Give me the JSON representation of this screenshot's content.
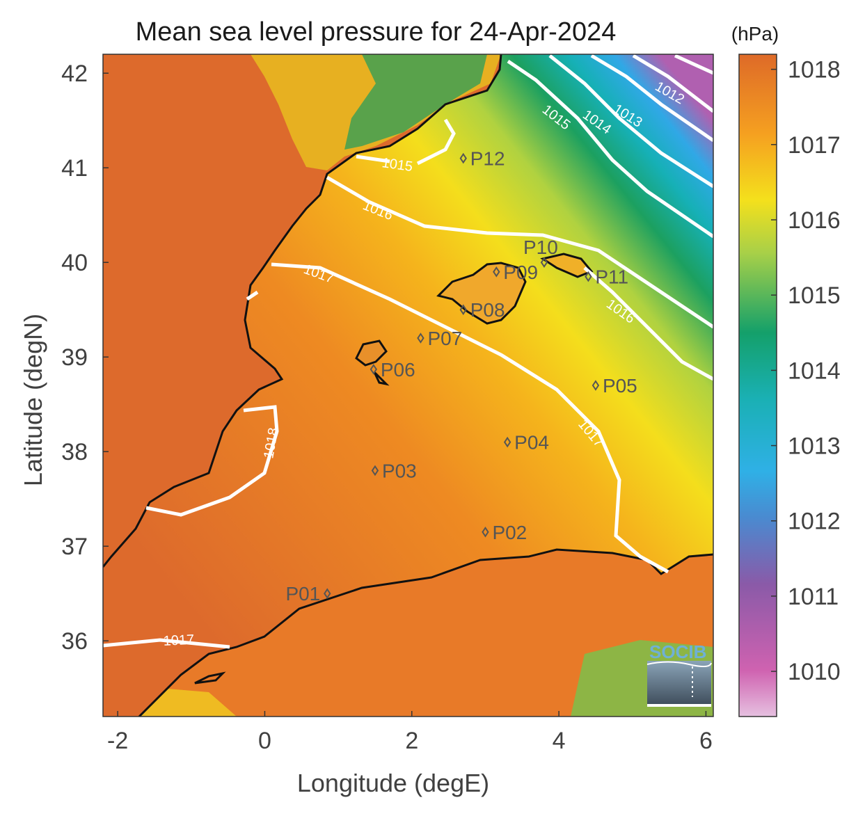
{
  "title": "Mean sea level pressure for 24-Apr-2024",
  "colorbar": {
    "unit": "(hPa)",
    "range": [
      1009.4,
      1018.2
    ],
    "ticks": [
      "1018",
      "1017",
      "1016",
      "1015",
      "1014",
      "1013",
      "1012",
      "1011",
      "1010"
    ],
    "colors": [
      "#e6c0e0",
      "#cf62b0",
      "#8a5aa8",
      "#2fb0e6",
      "#1ab0b4",
      "#14a06a",
      "#a8d048",
      "#f4e01c",
      "#f5a020",
      "#de6a28"
    ]
  },
  "map": {
    "xlabel": "Longitude (degE)",
    "ylabel": "Latitude (degN)",
    "xlim": [
      -2.2,
      6.1
    ],
    "ylim": [
      35.2,
      42.2
    ],
    "xticks": [
      "-2",
      "0",
      "2",
      "4",
      "6"
    ],
    "yticks": [
      "42",
      "41",
      "40",
      "39",
      "38",
      "37",
      "36"
    ],
    "land_color": "#dd6a2c",
    "coast_color": "#111111",
    "contour_color": "#ffffff"
  },
  "contour_labels": [
    "1012",
    "1013",
    "1014",
    "1015",
    "1015",
    "1016",
    "1016",
    "1017",
    "1017",
    "1017",
    "1018"
  ],
  "points": [
    {
      "name": "P01",
      "lon": 0.85,
      "lat": 36.5
    },
    {
      "name": "P02",
      "lon": 3.0,
      "lat": 37.15
    },
    {
      "name": "P03",
      "lon": 1.5,
      "lat": 37.8
    },
    {
      "name": "P04",
      "lon": 3.3,
      "lat": 38.1
    },
    {
      "name": "P05",
      "lon": 4.5,
      "lat": 38.7
    },
    {
      "name": "P06",
      "lon": 1.48,
      "lat": 38.87
    },
    {
      "name": "P07",
      "lon": 2.12,
      "lat": 39.2
    },
    {
      "name": "P08",
      "lon": 2.7,
      "lat": 39.5
    },
    {
      "name": "P09",
      "lon": 3.15,
      "lat": 39.9
    },
    {
      "name": "P10",
      "lon": 3.8,
      "lat": 40.0
    },
    {
      "name": "P11",
      "lon": 4.4,
      "lat": 39.85
    },
    {
      "name": "P12",
      "lon": 2.7,
      "lat": 41.1
    }
  ],
  "logo": {
    "text": "SOCIB"
  }
}
